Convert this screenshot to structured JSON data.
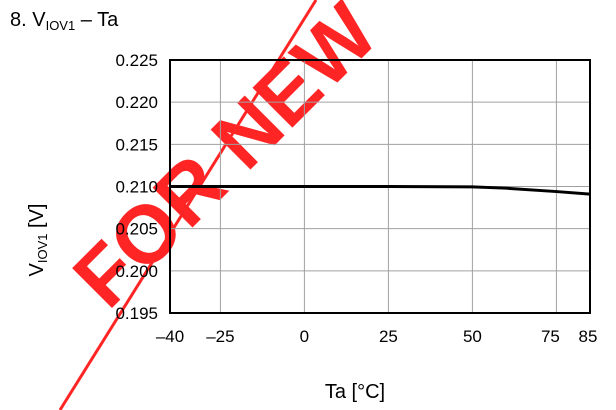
{
  "chart_data": {
    "type": "line",
    "title": {
      "prefix": "8. V",
      "subscript": "IOV1",
      "suffix": " – Ta"
    },
    "xlabel": "Ta [°C]",
    "ylabel": {
      "main": "V",
      "subscript": "IOV1",
      "suffix": " [V]"
    },
    "xlim": [
      -40,
      85
    ],
    "ylim": [
      0.195,
      0.225
    ],
    "x_ticks": [
      -40,
      -25,
      0,
      25,
      50,
      75,
      85
    ],
    "x_tick_labels": [
      "–40",
      "–25",
      "0",
      "25",
      "50",
      "75",
      "85"
    ],
    "y_ticks": [
      0.195,
      0.2,
      0.205,
      0.21,
      0.215,
      0.22,
      0.225
    ],
    "y_tick_labels": [
      "0.195",
      "0.200",
      "0.205",
      "0.210",
      "0.215",
      "0.220",
      "0.225"
    ],
    "grid": true,
    "series": [
      {
        "x": [
          -40,
          -25,
          0,
          25,
          50,
          60,
          75,
          85
        ],
        "y": [
          0.21,
          0.21,
          0.21,
          0.21,
          0.20995,
          0.2098,
          0.2094,
          0.2091
        ]
      }
    ],
    "colors": {
      "line": "#000000",
      "grid": "#a0a0a0",
      "axes": "#000000",
      "watermark": "#ff0000"
    },
    "watermark": "FOR NEW"
  }
}
